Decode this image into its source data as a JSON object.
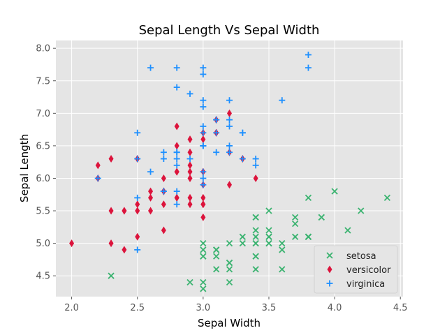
{
  "chart_data": {
    "type": "scatter",
    "title": "Sepal Length Vs Sepal Width",
    "xlabel": "Sepal Width",
    "ylabel": "Sepal Length",
    "xlim": [
      1.88,
      4.52
    ],
    "ylim": [
      4.18,
      8.12
    ],
    "xticks": [
      "2.0",
      "2.5",
      "3.0",
      "3.5",
      "4.0",
      "4.5"
    ],
    "yticks": [
      "4.5",
      "5.0",
      "5.5",
      "6.0",
      "6.5",
      "7.0",
      "7.5",
      "8.0"
    ],
    "grid": true,
    "legend_position": "lower-right",
    "style": {
      "plot_background": "#e5e5e5",
      "grid_color": "#ffffff"
    },
    "series": [
      {
        "name": "setosa",
        "marker": "x",
        "color": "#3cb371",
        "points": [
          [
            3.5,
            5.1
          ],
          [
            3.0,
            4.9
          ],
          [
            3.2,
            4.7
          ],
          [
            3.1,
            4.6
          ],
          [
            3.6,
            5.0
          ],
          [
            3.9,
            5.4
          ],
          [
            3.4,
            4.6
          ],
          [
            3.4,
            5.0
          ],
          [
            2.9,
            4.4
          ],
          [
            3.1,
            4.9
          ],
          [
            3.7,
            5.4
          ],
          [
            3.4,
            4.8
          ],
          [
            3.0,
            4.8
          ],
          [
            3.0,
            4.3
          ],
          [
            4.0,
            5.8
          ],
          [
            4.4,
            5.7
          ],
          [
            3.9,
            5.4
          ],
          [
            3.5,
            5.1
          ],
          [
            3.8,
            5.7
          ],
          [
            3.8,
            5.1
          ],
          [
            3.4,
            5.4
          ],
          [
            3.7,
            5.1
          ],
          [
            3.6,
            4.6
          ],
          [
            3.3,
            5.1
          ],
          [
            3.4,
            4.8
          ],
          [
            3.0,
            5.0
          ],
          [
            3.4,
            5.0
          ],
          [
            3.5,
            5.2
          ],
          [
            3.4,
            5.2
          ],
          [
            3.2,
            4.7
          ],
          [
            3.1,
            4.8
          ],
          [
            3.4,
            5.4
          ],
          [
            4.1,
            5.2
          ],
          [
            4.2,
            5.5
          ],
          [
            3.1,
            4.9
          ],
          [
            3.2,
            5.0
          ],
          [
            3.5,
            5.5
          ],
          [
            3.6,
            4.9
          ],
          [
            3.0,
            4.4
          ],
          [
            3.4,
            5.1
          ],
          [
            3.5,
            5.0
          ],
          [
            2.3,
            4.5
          ],
          [
            3.2,
            4.4
          ],
          [
            3.5,
            5.0
          ],
          [
            3.8,
            5.1
          ],
          [
            3.0,
            4.8
          ],
          [
            3.8,
            5.1
          ],
          [
            3.2,
            4.6
          ],
          [
            3.7,
            5.3
          ],
          [
            3.3,
            5.0
          ]
        ]
      },
      {
        "name": "versicolor",
        "marker": "d",
        "color": "#dc143c",
        "points": [
          [
            3.2,
            7.0
          ],
          [
            3.2,
            6.4
          ],
          [
            3.1,
            6.9
          ],
          [
            2.3,
            5.5
          ],
          [
            2.8,
            6.5
          ],
          [
            2.8,
            5.7
          ],
          [
            3.3,
            6.3
          ],
          [
            2.4,
            4.9
          ],
          [
            2.9,
            6.6
          ],
          [
            2.7,
            5.2
          ],
          [
            2.0,
            5.0
          ],
          [
            3.0,
            5.9
          ],
          [
            2.2,
            6.0
          ],
          [
            2.9,
            6.1
          ],
          [
            2.9,
            5.6
          ],
          [
            3.1,
            6.7
          ],
          [
            3.0,
            5.6
          ],
          [
            2.7,
            5.8
          ],
          [
            2.2,
            6.2
          ],
          [
            2.5,
            5.6
          ],
          [
            3.2,
            5.9
          ],
          [
            2.8,
            6.1
          ],
          [
            2.5,
            6.3
          ],
          [
            2.8,
            6.1
          ],
          [
            2.9,
            6.4
          ],
          [
            3.0,
            6.6
          ],
          [
            2.8,
            6.8
          ],
          [
            3.0,
            6.7
          ],
          [
            2.9,
            6.0
          ],
          [
            2.6,
            5.7
          ],
          [
            2.4,
            5.5
          ],
          [
            2.4,
            5.5
          ],
          [
            2.7,
            5.8
          ],
          [
            2.7,
            6.0
          ],
          [
            3.0,
            5.4
          ],
          [
            3.4,
            6.0
          ],
          [
            3.1,
            6.7
          ],
          [
            2.3,
            6.3
          ],
          [
            3.0,
            5.6
          ],
          [
            2.5,
            5.5
          ],
          [
            2.6,
            5.5
          ],
          [
            3.0,
            6.1
          ],
          [
            2.6,
            5.8
          ],
          [
            2.3,
            5.0
          ],
          [
            2.7,
            5.6
          ],
          [
            3.0,
            5.7
          ],
          [
            2.9,
            5.7
          ],
          [
            2.9,
            6.2
          ],
          [
            2.5,
            5.1
          ],
          [
            2.8,
            5.7
          ]
        ]
      },
      {
        "name": "virginica",
        "marker": "+",
        "color": "#1e90ff",
        "points": [
          [
            3.3,
            6.3
          ],
          [
            2.7,
            5.8
          ],
          [
            3.0,
            7.1
          ],
          [
            2.9,
            6.3
          ],
          [
            3.0,
            6.5
          ],
          [
            3.0,
            7.6
          ],
          [
            2.5,
            4.9
          ],
          [
            2.9,
            7.3
          ],
          [
            2.5,
            6.7
          ],
          [
            3.6,
            7.2
          ],
          [
            3.2,
            6.5
          ],
          [
            2.7,
            6.4
          ],
          [
            3.0,
            6.8
          ],
          [
            2.5,
            5.7
          ],
          [
            2.8,
            5.8
          ],
          [
            3.2,
            6.4
          ],
          [
            3.0,
            6.5
          ],
          [
            3.8,
            7.7
          ],
          [
            2.6,
            7.7
          ],
          [
            2.2,
            6.0
          ],
          [
            3.2,
            6.9
          ],
          [
            2.8,
            5.6
          ],
          [
            2.8,
            7.7
          ],
          [
            2.7,
            6.3
          ],
          [
            3.3,
            6.7
          ],
          [
            3.2,
            7.2
          ],
          [
            2.8,
            6.2
          ],
          [
            3.0,
            6.1
          ],
          [
            2.8,
            6.4
          ],
          [
            3.0,
            7.2
          ],
          [
            2.8,
            7.4
          ],
          [
            3.8,
            7.9
          ],
          [
            2.8,
            6.4
          ],
          [
            2.8,
            6.3
          ],
          [
            2.6,
            6.1
          ],
          [
            3.0,
            7.7
          ],
          [
            3.4,
            6.3
          ],
          [
            3.1,
            6.4
          ],
          [
            3.0,
            6.0
          ],
          [
            3.1,
            6.9
          ],
          [
            3.1,
            6.7
          ],
          [
            3.1,
            6.9
          ],
          [
            2.7,
            5.8
          ],
          [
            3.2,
            6.8
          ],
          [
            3.3,
            6.7
          ],
          [
            3.0,
            6.7
          ],
          [
            2.5,
            6.3
          ],
          [
            3.0,
            6.5
          ],
          [
            3.4,
            6.2
          ],
          [
            3.0,
            5.9
          ]
        ]
      }
    ]
  }
}
